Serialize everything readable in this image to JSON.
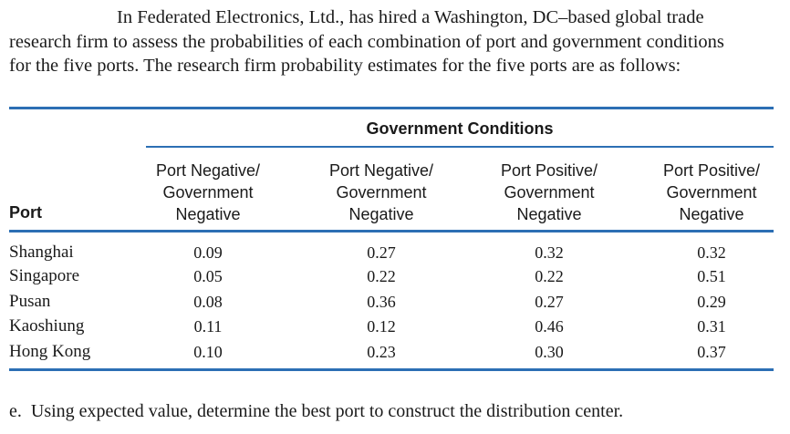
{
  "intro": [
    "In Federated Electronics, Ltd., has hired a Washington, DC–based global trade",
    "research firm to assess the probabilities of each combination of port and government conditions",
    "for the five ports. The research firm probability estimates for the five ports are as follows:"
  ],
  "table": {
    "group_header": "Government Conditions",
    "port_header": "Port",
    "columns": [
      [
        "Port Negative/",
        "Government",
        "Negative"
      ],
      [
        "Port Negative/",
        "Government",
        "Negative"
      ],
      [
        "Port Positive/",
        "Government",
        "Negative"
      ],
      [
        "Port Positive/",
        "Government",
        "Negative"
      ]
    ],
    "rows": [
      {
        "port": "Shanghai",
        "values": [
          "0.09",
          "0.27",
          "0.32",
          "0.32"
        ]
      },
      {
        "port": "Singapore",
        "values": [
          "0.05",
          "0.22",
          "0.22",
          "0.51"
        ]
      },
      {
        "port": "Pusan",
        "values": [
          "0.08",
          "0.36",
          "0.27",
          "0.29"
        ]
      },
      {
        "port": "Kaoshiung",
        "values": [
          "0.11",
          "0.12",
          "0.46",
          "0.31"
        ]
      },
      {
        "port": "Hong Kong",
        "values": [
          "0.10",
          "0.23",
          "0.30",
          "0.37"
        ]
      }
    ],
    "rule_color": "#2c6fb4"
  },
  "question": {
    "label": "e.",
    "text": "Using expected value, determine the best port to construct the distribution center."
  }
}
